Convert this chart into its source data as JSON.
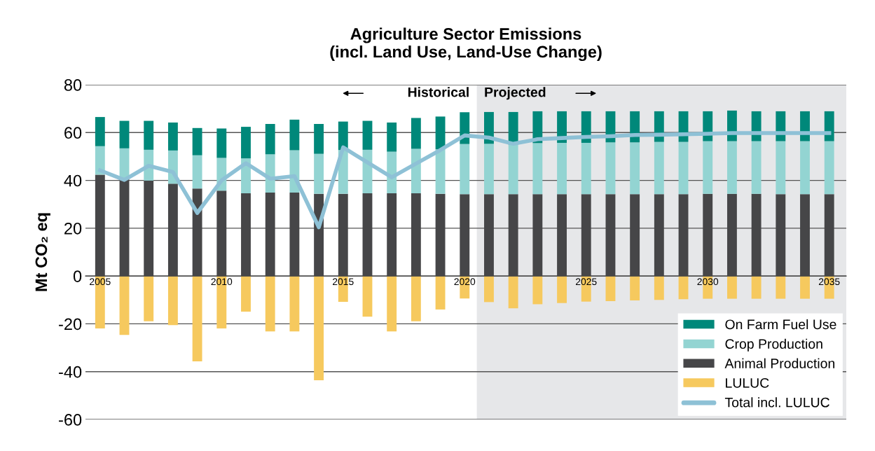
{
  "chart_data": {
    "type": "bar",
    "title": "Agriculture Sector Emissions\n(incl. Land Use, Land-Use Change)",
    "ylabel": "Mt CO₂ eq",
    "x": [
      2005,
      2006,
      2007,
      2008,
      2009,
      2010,
      2011,
      2012,
      2013,
      2014,
      2015,
      2016,
      2017,
      2018,
      2019,
      2020,
      2021,
      2022,
      2023,
      2024,
      2025,
      2026,
      2027,
      2028,
      2029,
      2030,
      2031,
      2032,
      2033,
      2034,
      2035
    ],
    "stacked": true,
    "series": [
      {
        "name": "LULUC",
        "color": "#f6c95e",
        "values": [
          -21.9,
          -24.6,
          -18.9,
          -20.5,
          -35.7,
          -21.9,
          -14.9,
          -23.2,
          -23.2,
          -43.6,
          -10.8,
          -17.0,
          -23.2,
          -18.9,
          -14.0,
          -9.4,
          -10.9,
          -13.5,
          -11.8,
          -11.3,
          -10.7,
          -10.5,
          -10.2,
          -10.0,
          -9.7,
          -9.5,
          -9.5,
          -9.5,
          -9.5,
          -9.5,
          -9.5
        ]
      },
      {
        "name": "Animal Production",
        "color": "#464648",
        "values": [
          42.4,
          40.7,
          39.9,
          38.6,
          36.6,
          35.7,
          34.6,
          34.9,
          34.9,
          34.4,
          34.4,
          34.6,
          34.6,
          34.6,
          34.4,
          34.2,
          34.2,
          34.2,
          34.2,
          34.2,
          34.2,
          34.2,
          34.2,
          34.2,
          34.2,
          34.4,
          34.4,
          34.4,
          34.2,
          34.2,
          34.2
        ]
      },
      {
        "name": "Crop Production",
        "color": "#93d4d2",
        "values": [
          11.9,
          12.7,
          12.9,
          13.9,
          13.9,
          13.7,
          14.6,
          16.0,
          17.7,
          16.7,
          18.3,
          18.2,
          17.4,
          18.6,
          18.6,
          21.0,
          21.1,
          20.8,
          21.4,
          21.5,
          21.5,
          21.7,
          21.7,
          21.9,
          21.9,
          22.0,
          22.0,
          22.0,
          22.2,
          22.2,
          22.2
        ]
      },
      {
        "name": "On Farm Fuel Use",
        "color": "#00887a",
        "values": [
          12.2,
          11.5,
          12.1,
          11.7,
          11.4,
          12.3,
          13.2,
          12.7,
          12.8,
          12.5,
          11.9,
          12.1,
          12.2,
          12.9,
          13.7,
          13.3,
          13.3,
          13.6,
          13.3,
          13.2,
          13.2,
          13.0,
          13.0,
          12.8,
          12.8,
          12.5,
          12.8,
          12.5,
          12.5,
          12.5,
          12.5
        ]
      },
      {
        "name": "Total incl. LULUC",
        "type": "line",
        "color": "#8ec1d6",
        "values": [
          44.2,
          40.2,
          46.1,
          43.5,
          26.4,
          40.0,
          47.2,
          40.7,
          41.8,
          20.4,
          53.8,
          47.5,
          41.3,
          47.0,
          52.7,
          58.8,
          57.9,
          55.3,
          57.2,
          57.7,
          58.2,
          58.5,
          59.0,
          59.1,
          59.3,
          59.5,
          59.8,
          59.8,
          59.8,
          59.8,
          59.8
        ]
      }
    ],
    "xlim": [
      2004.4,
      2035.7
    ],
    "xticks": [
      2005,
      2010,
      2015,
      2020,
      2025,
      2030,
      2035
    ],
    "ylim": [
      -60,
      80
    ],
    "yticks": [
      -60,
      -40,
      -20,
      0,
      20,
      40,
      60,
      80
    ],
    "grid": "y",
    "legend": "bottom right",
    "marker": "none",
    "line_style": "solid",
    "bands": [
      {
        "axis": "x",
        "from": 2020.5,
        "to": 2035.7,
        "color": "#e6e7e9"
      }
    ],
    "annotations": [
      "Historical",
      "Projected"
    ]
  }
}
